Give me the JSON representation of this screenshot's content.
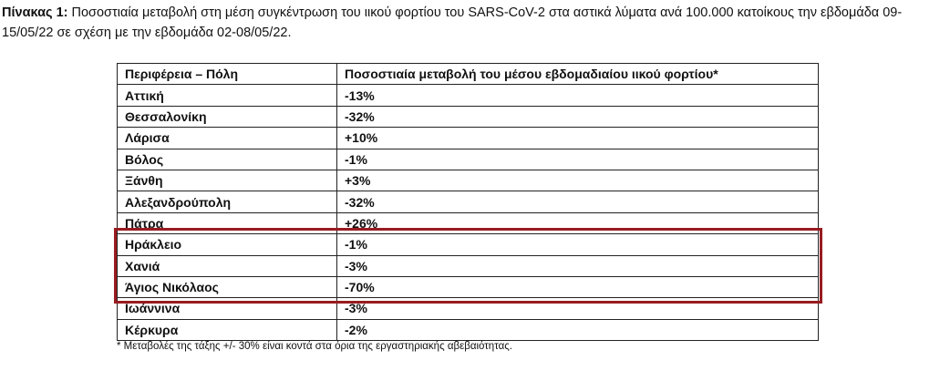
{
  "caption": {
    "label": "Πίνακας 1:",
    "text": "Ποσοστιαία μεταβολή στη μέση συγκέντρωση του ιικού φορτίου του SARS-CoV-2 στα αστικά λύματα ανά 100.000 κατοίκους την εβδομάδα 09-15/05/22 σε σχέση με την εβδομάδα 02-08/05/22."
  },
  "table": {
    "header": [
      "Περιφέρεια – Πόλη",
      "Ποσοστιαία μεταβολή του μέσου εβδομαδιαίου ιικού φορτίου*"
    ],
    "rows": [
      [
        "Αττική",
        "-13%"
      ],
      [
        "Θεσσαλονίκη",
        "-32%"
      ],
      [
        "Λάρισα",
        "+10%"
      ],
      [
        "Βόλος",
        "-1%"
      ],
      [
        "Ξάνθη",
        "+3%"
      ],
      [
        "Αλεξανδρούπολη",
        "-32%"
      ],
      [
        "Πάτρα",
        "+26%"
      ],
      [
        "Ηράκλειο",
        "-1%"
      ],
      [
        "Χανιά",
        "-3%"
      ],
      [
        "Άγιος Νικόλαος",
        "-70%"
      ],
      [
        "Ιωάννινα",
        "-3%"
      ],
      [
        "Κέρκυρα",
        "-2%"
      ]
    ]
  },
  "footnote": "* Μεταβολές της τάξης +/- 30% είναι κοντά στα όρια της εργαστηριακής αβεβαιότητας."
}
